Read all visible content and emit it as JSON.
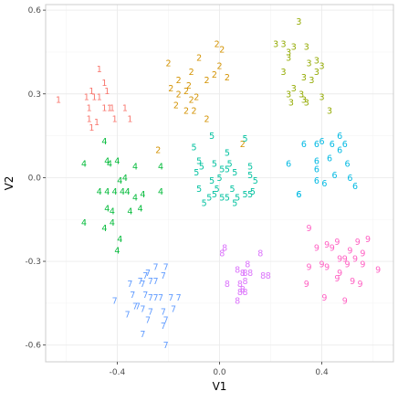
{
  "chart_data": {
    "type": "scatter",
    "title": "",
    "xlabel": "V1",
    "ylabel": "V2",
    "xlim": [
      -0.68,
      0.68
    ],
    "ylim": [
      -0.66,
      0.62
    ],
    "x_ticks": [
      -0.4,
      0.0,
      0.4
    ],
    "x_tick_labels": [
      "-0.4",
      "0.0",
      "0.4"
    ],
    "y_ticks": [
      -0.6,
      -0.3,
      0.0,
      0.3,
      0.6
    ],
    "y_tick_labels": [
      "-0.6",
      "-0.3",
      "0.0",
      "0.3",
      "0.6"
    ],
    "grid": true,
    "legend": "none",
    "marker": "text labels (cluster digit)",
    "colors": {
      "1": "#F8766D",
      "2": "#D39200",
      "3": "#93AA00",
      "4": "#00BA38",
      "5": "#00C19F",
      "6": "#00B9E3",
      "7": "#619CFF",
      "8": "#DB72FB",
      "9": "#FF61C3"
    },
    "series": [
      {
        "label": "1",
        "points": [
          [
            -0.47,
            0.39
          ],
          [
            -0.45,
            0.34
          ],
          [
            -0.49,
            0.29
          ],
          [
            -0.47,
            0.29
          ],
          [
            -0.44,
            0.31
          ],
          [
            -0.5,
            0.31
          ],
          [
            -0.52,
            0.29
          ],
          [
            -0.63,
            0.28
          ],
          [
            -0.45,
            0.25
          ],
          [
            -0.42,
            0.25
          ],
          [
            -0.43,
            0.25
          ],
          [
            -0.37,
            0.25
          ],
          [
            -0.51,
            0.25
          ],
          [
            -0.41,
            0.21
          ],
          [
            -0.51,
            0.21
          ],
          [
            -0.48,
            0.2
          ],
          [
            -0.35,
            0.21
          ],
          [
            -0.5,
            0.18
          ]
        ]
      },
      {
        "label": "2",
        "points": [
          [
            -0.01,
            0.48
          ],
          [
            0.01,
            0.46
          ],
          [
            -0.2,
            0.41
          ],
          [
            -0.08,
            0.43
          ],
          [
            0.0,
            0.4
          ],
          [
            -0.11,
            0.38
          ],
          [
            -0.02,
            0.37
          ],
          [
            -0.16,
            0.35
          ],
          [
            0.03,
            0.36
          ],
          [
            -0.05,
            0.35
          ],
          [
            -0.12,
            0.33
          ],
          [
            -0.19,
            0.32
          ],
          [
            -0.13,
            0.31
          ],
          [
            -0.09,
            0.29
          ],
          [
            -0.16,
            0.3
          ],
          [
            -0.11,
            0.28
          ],
          [
            -0.17,
            0.26
          ],
          [
            -0.13,
            0.24
          ],
          [
            -0.1,
            0.24
          ],
          [
            -0.05,
            0.21
          ],
          [
            -0.24,
            0.1
          ],
          [
            0.09,
            0.12
          ]
        ]
      },
      {
        "label": "3",
        "points": [
          [
            0.31,
            0.56
          ],
          [
            0.22,
            0.48
          ],
          [
            0.25,
            0.48
          ],
          [
            0.29,
            0.47
          ],
          [
            0.34,
            0.47
          ],
          [
            0.27,
            0.45
          ],
          [
            0.27,
            0.43
          ],
          [
            0.38,
            0.42
          ],
          [
            0.35,
            0.41
          ],
          [
            0.4,
            0.4
          ],
          [
            0.25,
            0.38
          ],
          [
            0.38,
            0.38
          ],
          [
            0.33,
            0.36
          ],
          [
            0.36,
            0.35
          ],
          [
            0.29,
            0.32
          ],
          [
            0.27,
            0.3
          ],
          [
            0.32,
            0.3
          ],
          [
            0.4,
            0.29
          ],
          [
            0.28,
            0.27
          ],
          [
            0.33,
            0.28
          ],
          [
            0.34,
            0.27
          ],
          [
            0.43,
            0.24
          ]
        ]
      },
      {
        "label": "4",
        "points": [
          [
            -0.45,
            0.13
          ],
          [
            -0.44,
            0.06
          ],
          [
            -0.4,
            0.06
          ],
          [
            -0.53,
            0.05
          ],
          [
            -0.43,
            0.05
          ],
          [
            -0.33,
            0.04
          ],
          [
            -0.23,
            0.04
          ],
          [
            -0.37,
            0.0
          ],
          [
            -0.39,
            -0.01
          ],
          [
            -0.44,
            -0.05
          ],
          [
            -0.47,
            -0.05
          ],
          [
            -0.41,
            -0.05
          ],
          [
            -0.38,
            -0.05
          ],
          [
            -0.36,
            -0.05
          ],
          [
            -0.33,
            -0.07
          ],
          [
            -0.3,
            -0.06
          ],
          [
            -0.23,
            -0.05
          ],
          [
            -0.44,
            -0.11
          ],
          [
            -0.42,
            -0.12
          ],
          [
            -0.35,
            -0.12
          ],
          [
            -0.31,
            -0.11
          ],
          [
            -0.53,
            -0.16
          ],
          [
            -0.42,
            -0.16
          ],
          [
            -0.45,
            -0.18
          ],
          [
            -0.39,
            -0.22
          ],
          [
            -0.4,
            -0.26
          ]
        ]
      },
      {
        "label": "5",
        "points": [
          [
            -0.03,
            0.15
          ],
          [
            0.1,
            0.14
          ],
          [
            -0.1,
            0.11
          ],
          [
            0.03,
            0.09
          ],
          [
            -0.08,
            0.06
          ],
          [
            -0.02,
            0.05
          ],
          [
            -0.07,
            0.04
          ],
          [
            -0.09,
            0.02
          ],
          [
            0.04,
            0.05
          ],
          [
            0.12,
            0.04
          ],
          [
            0.01,
            0.03
          ],
          [
            0.03,
            0.03
          ],
          [
            0.06,
            0.02
          ],
          [
            0.12,
            0.01
          ],
          [
            0.0,
            0.0
          ],
          [
            -0.03,
            -0.01
          ],
          [
            0.14,
            -0.01
          ],
          [
            -0.08,
            -0.04
          ],
          [
            -0.01,
            -0.04
          ],
          [
            0.05,
            -0.04
          ],
          [
            0.13,
            -0.05
          ],
          [
            -0.02,
            -0.06
          ],
          [
            0.01,
            -0.07
          ],
          [
            0.03,
            -0.07
          ],
          [
            0.07,
            -0.07
          ],
          [
            0.1,
            -0.06
          ],
          [
            0.12,
            -0.06
          ],
          [
            0.06,
            -0.09
          ],
          [
            -0.04,
            -0.07
          ],
          [
            -0.06,
            -0.09
          ]
        ]
      },
      {
        "label": "6",
        "points": [
          [
            0.47,
            0.15
          ],
          [
            0.33,
            0.12
          ],
          [
            0.38,
            0.12
          ],
          [
            0.4,
            0.13
          ],
          [
            0.44,
            0.12
          ],
          [
            0.49,
            0.12
          ],
          [
            0.47,
            0.1
          ],
          [
            0.38,
            0.06
          ],
          [
            0.27,
            0.05
          ],
          [
            0.43,
            0.07
          ],
          [
            0.5,
            0.05
          ],
          [
            0.38,
            0.03
          ],
          [
            0.45,
            0.01
          ],
          [
            0.51,
            0.0
          ],
          [
            0.38,
            -0.01
          ],
          [
            0.41,
            -0.02
          ],
          [
            0.53,
            -0.03
          ],
          [
            0.31,
            -0.06
          ],
          [
            0.31,
            -0.06
          ]
        ]
      },
      {
        "label": "7",
        "points": [
          [
            -0.25,
            -0.32
          ],
          [
            -0.21,
            -0.32
          ],
          [
            -0.28,
            -0.34
          ],
          [
            -0.29,
            -0.35
          ],
          [
            -0.22,
            -0.35
          ],
          [
            -0.31,
            -0.37
          ],
          [
            -0.27,
            -0.37
          ],
          [
            -0.25,
            -0.37
          ],
          [
            -0.35,
            -0.38
          ],
          [
            -0.3,
            -0.38
          ],
          [
            -0.34,
            -0.42
          ],
          [
            -0.29,
            -0.42
          ],
          [
            -0.27,
            -0.43
          ],
          [
            -0.25,
            -0.43
          ],
          [
            -0.23,
            -0.43
          ],
          [
            -0.19,
            -0.43
          ],
          [
            -0.16,
            -0.43
          ],
          [
            -0.41,
            -0.44
          ],
          [
            -0.33,
            -0.46
          ],
          [
            -0.32,
            -0.46
          ],
          [
            -0.3,
            -0.47
          ],
          [
            -0.27,
            -0.48
          ],
          [
            -0.22,
            -0.48
          ],
          [
            -0.18,
            -0.47
          ],
          [
            -0.36,
            -0.49
          ],
          [
            -0.28,
            -0.51
          ],
          [
            -0.21,
            -0.51
          ],
          [
            -0.22,
            -0.53
          ],
          [
            -0.3,
            -0.56
          ],
          [
            -0.21,
            -0.6
          ]
        ]
      },
      {
        "label": "8",
        "points": [
          [
            0.02,
            -0.25
          ],
          [
            0.01,
            -0.27
          ],
          [
            0.16,
            -0.27
          ],
          [
            0.11,
            -0.31
          ],
          [
            0.07,
            -0.33
          ],
          [
            0.09,
            -0.34
          ],
          [
            0.1,
            -0.34
          ],
          [
            0.12,
            -0.34
          ],
          [
            0.17,
            -0.35
          ],
          [
            0.19,
            -0.35
          ],
          [
            0.03,
            -0.38
          ],
          [
            0.08,
            -0.38
          ],
          [
            0.1,
            -0.37
          ],
          [
            0.09,
            -0.4
          ],
          [
            0.08,
            -0.41
          ],
          [
            0.1,
            -0.41
          ],
          [
            0.07,
            -0.44
          ]
        ]
      },
      {
        "label": "9",
        "points": [
          [
            0.35,
            -0.18
          ],
          [
            0.58,
            -0.22
          ],
          [
            0.54,
            -0.23
          ],
          [
            0.46,
            -0.23
          ],
          [
            0.42,
            -0.24
          ],
          [
            0.38,
            -0.25
          ],
          [
            0.44,
            -0.25
          ],
          [
            0.51,
            -0.26
          ],
          [
            0.56,
            -0.27
          ],
          [
            0.49,
            -0.29
          ],
          [
            0.53,
            -0.29
          ],
          [
            0.47,
            -0.29
          ],
          [
            0.4,
            -0.31
          ],
          [
            0.42,
            -0.32
          ],
          [
            0.5,
            -0.31
          ],
          [
            0.56,
            -0.31
          ],
          [
            0.35,
            -0.32
          ],
          [
            0.62,
            -0.33
          ],
          [
            0.47,
            -0.34
          ],
          [
            0.52,
            -0.37
          ],
          [
            0.46,
            -0.36
          ],
          [
            0.34,
            -0.38
          ],
          [
            0.55,
            -0.38
          ],
          [
            0.41,
            -0.43
          ],
          [
            0.49,
            -0.44
          ]
        ]
      }
    ]
  }
}
